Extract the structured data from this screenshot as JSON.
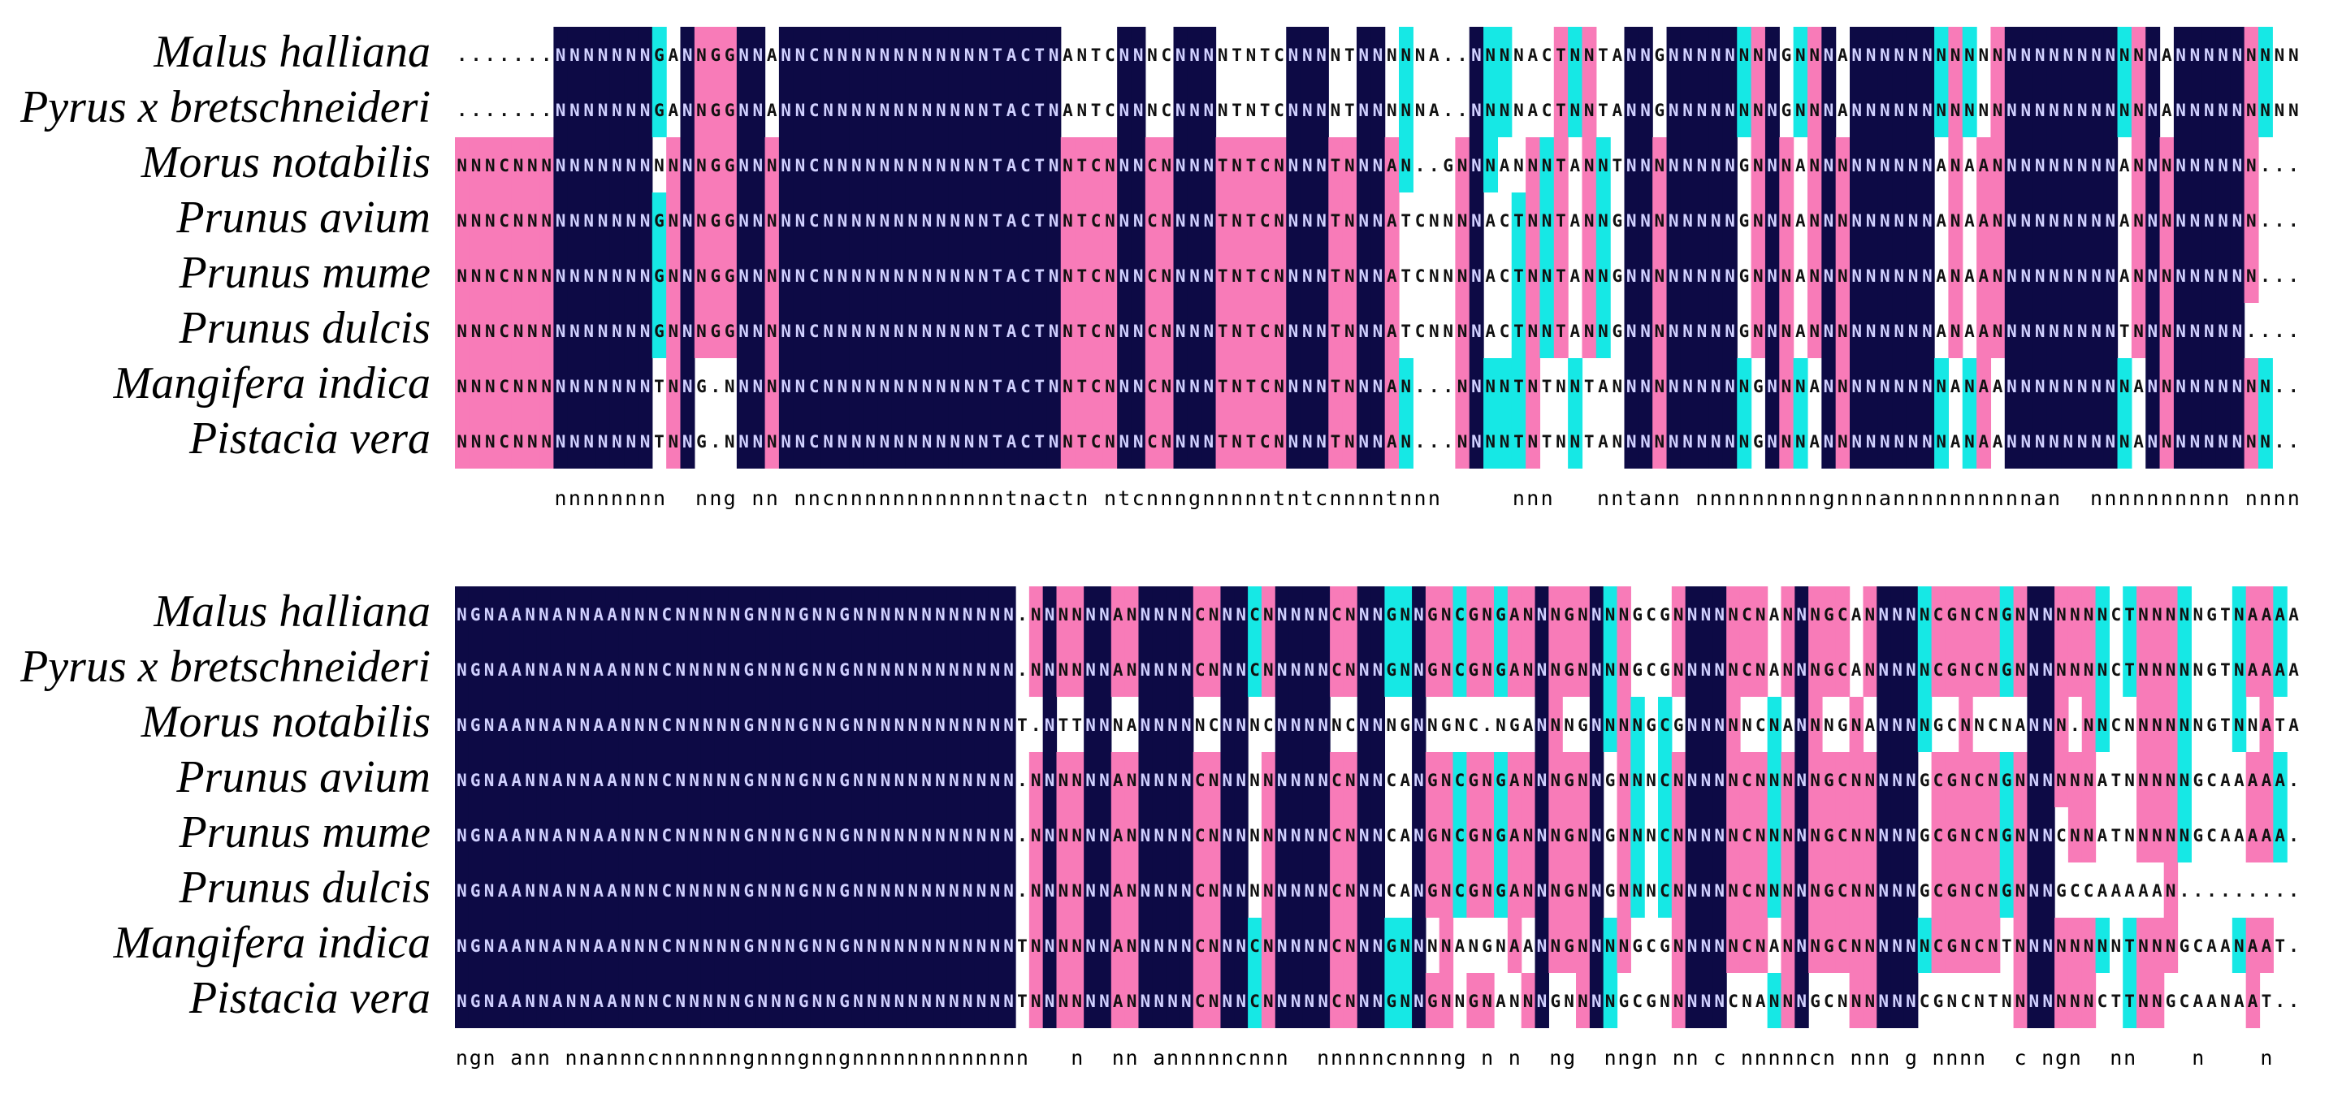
{
  "colors": {
    "identical": "#0d0a45",
    "similar": "#f87bb8",
    "partial": "#16e8e5",
    "unconserved": "#ffffff",
    "text_on_dark": "#d0d0ff",
    "text_on_light": "#111111"
  },
  "blocks": [
    {
      "species": [
        "Malus halliana",
        "Pyrus x bretschneideri",
        "Morus notabilis",
        "Prunus avium",
        "Prunus mume",
        "Prunus dulcis",
        "Mangifera indica",
        "Pistacia vera"
      ],
      "rows": [
        ".......NNNNNNNGANNGGNNANNCNNNNNNNNNNNNTACTNANTCNNNCNNNNTNTCNNNNTNNNNNA..NNNNACTNNTANNGNNNNNNNNGNNNANNNNNNNNNNNNNNNNNNNNNNANNNNNNNNN",
        ".......NNNNNNNGANNGGNNANNCNNNNNNNNNNNNTACTNANTCNNNCNNNNTNTCNNNNTNNNNNA..NNNNACTNNTANNGNNNNNNNNGNNNANNNNNNNNNNNNNNNNNNNNNNANNNNNNNNN",
        "NNNCNNNNNNNNNNNNNNGGNNNNNCNNNNNNNNNNNNTACTNNTCNNNCNNNNTNTCNNNNTNNNAN..GNNNANNNTANNTNNNNNNNNGNNNANNNNNNNNNANAANNNNNNNNNANNNNNNNNN",
        "NNNCNNNNNNNNNNGNNNGGNNNNNCNNNNNNNNNNNNTACTNNTCNNNCNNNNTNTCNNNNTNNNATCNNNNACTNNTANNGNNNNNNNNGNNNANNNNNNNNNANAANNNNNNNNNANNNNNNNNN",
        "NNNCNNNNNNNNNNGNNNGGNNNNNCNNNNNNNNNNNNTACTNNTCNNNCNNNNTNTCNNNNTNNNATCNNNNACTNNTANNGNNNNNNNNGNNNANNNNNNNNNANAANNNNNNNNNANNNNNNNNN",
        "NNNCNNNNNNNNNNGNNNGGNNNNNCNNNNNNNNNNNNTACTNNTCNNNCNNNNTNTCNNNNTNNNATCNNNNACTNNTANNGNNNNNNNNGNNNANNNNNNNNNANAANNNNNNNNNTNNNNNNNN",
        "NNNCNNNNNNNNNNTNNG.NNNNNNCNNNNNNNNNNNNTACTNNTCNNNCNNNNTNTCNNNNTNNNAN...NNNNTNTNNTANNNNNNNNNNGNNNANNNNNNNNNANAANNNNNNNNNANNNNNNNNN",
        "NNNCNNNNNNNNNNTNNG.NNNNNNCNNNNNNNNNNNNTACTNNTCNNNCNNNNTNTCNNNNTNNNAN...NNNNTNTNNTANNNNNNNNNNGNNNANNNNNNNNNANAANNNNNNNNNANNNNNNNNN"
      ],
      "consensus": "       nnnnnnnn  nng nn nncnnnnnnnnnnnntnactn ntcnnngnnnnntntcnnnntnnn     nnn   nntann nnnnnnnnngnnnannnnnnnnnnan  nnnnnnnnnn nnnnnnnnn"
    },
    {
      "species": [
        "Malus halliana",
        "Pyrus x bretschneideri",
        "Morus notabilis",
        "Prunus avium",
        "Prunus mume",
        "Prunus dulcis",
        "Mangifera indica",
        "Pistacia vera"
      ],
      "rows": [
        "NGNAANNANNAANNNCNNNNNGNNNGNNGNNNNNNNNNNNN.NNNNNNANNNNNCNNNCNNNNNCNNNGNNGNCGNGANNNGNNNNGCGNNNNNCNANNNGCANNNNNCGNCNGNNNNNNNCTNNNNNGTNAAAA",
        "NGNAANNANNAANNNCNNNNNGNNNGNNGNNNNNNNNNNNN.NNNNNNANNNNNCNNNCNNNNNCNNNGNNGNCGNGANNNGNNNNGCGNNNNNCNANNNGCANNNNNCGNCNGNNNNNNNCTNNNNNGTNAAAA",
        "NGNAANNANNAANNNCNNNNNGNNNGNNGNNNNNNNNNNNNT.NTTNNNANNNNNCNNNCNNNNNCNNNGNNGNC.NGANNNGNNNNGCGNNNNNCNANNNGNANNNNGCNNCNANNN.NNCNNNNNNGTNNATA",
        "NGNAANNANNAANNNCNNNNNGNNNGNNGNNNNNNNNNNNN.NNNNNNANNNNNCNNNNNNNNNCNNNCANGNCGNGANNNGNNGNNNCNNNNNCNNNNNGCNNNNNGCGNCNGNNNNNNATNNNNNGCAAAAA",
        "NGNAANNANNAANNNCNNNNNGNNNGNNGNNNNNNNNNNNN.NNNNNNANNNNNCNNNNNNNNNCNNNCANGNCGNGANNNGNNGNNNCNNNNNCNNNNNGCNNNNNGCGNCNGNNNCNNATNNNNNGCAAAAA",
        "NGNAANNANNAANNNCNNNNNGNNNGNNGNNNNNNNNNNNN.NNNNNNANNNNNCNNNNNNNNNCNNNCANGNCGNGANNNGNNGNNNCNNNNNCNNNNNGCNNNNNGCGNCNGNNNGCCAAAAAN........",
        "NGNAANNANNAANNNCNNNNNGNNNGNNGNNNNNNNNNNNNTNNNNNNANNNNNCNNNCNNNNNCNNNGNNNNANGNAANNGNNNNGCGNNNNNCNANNNGCNNNNNNCGNCNTNNNNNNNNTNNNGCAANAAT",
        "NGNAANNANNAANNNCNNNNNGNNNGNNGNNNNNNNNNNNNTNNNNNNANNNNNCNNNCNNNNNCNNNGNNGNNGNANNNGNNNNGCGNNNNNCNANNNGCNNNNNNCGNCNTNNNNNNNCTTNNGCAANAAT"
      ],
      "consensus": "ngn ann nnannncnnnnnngnnngnngnnnnnnnnnnnnn   n  nn annnnncnnn  nnnnncnnnng n n  ng  nngn nn c nnnnncn nnn g nnnn  c ngn  nn    n    n        "
    }
  ]
}
